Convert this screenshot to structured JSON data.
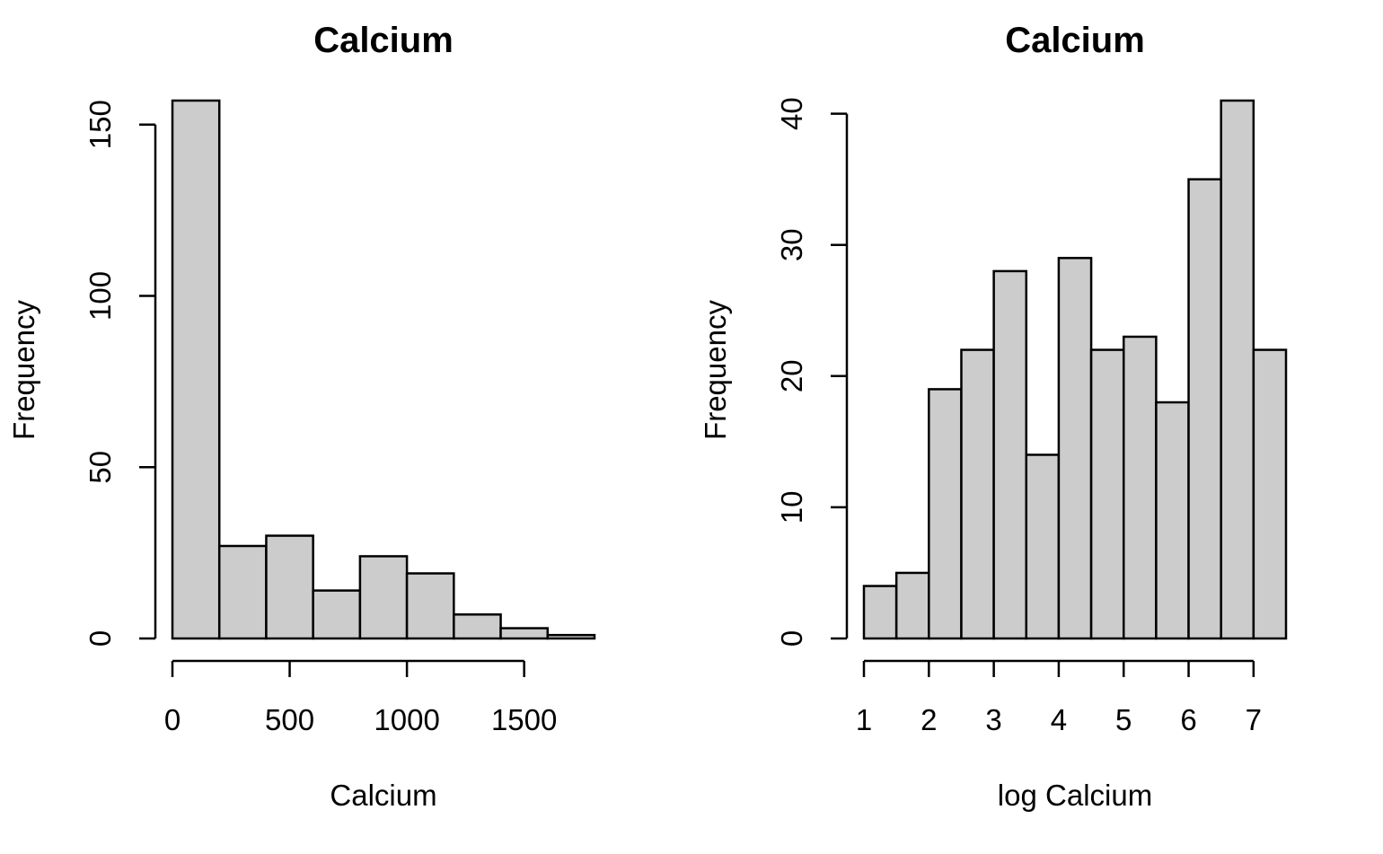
{
  "colors": {
    "bar_fill": "#cccccc",
    "bar_stroke": "#000000",
    "background": "#ffffff"
  },
  "chart_data": [
    {
      "type": "bar",
      "title": "Calcium",
      "xlabel": "Calcium",
      "ylabel": "Frequency",
      "bins": [
        {
          "start": 0,
          "end": 200,
          "count": 157
        },
        {
          "start": 200,
          "end": 400,
          "count": 27
        },
        {
          "start": 400,
          "end": 600,
          "count": 30
        },
        {
          "start": 600,
          "end": 800,
          "count": 14
        },
        {
          "start": 800,
          "end": 1000,
          "count": 24
        },
        {
          "start": 1000,
          "end": 1200,
          "count": 19
        },
        {
          "start": 1200,
          "end": 1400,
          "count": 7
        },
        {
          "start": 1400,
          "end": 1600,
          "count": 3
        },
        {
          "start": 1600,
          "end": 1800,
          "count": 1
        }
      ],
      "xlim": [
        0,
        1800
      ],
      "ylim": [
        0,
        157
      ],
      "xticks": [
        0,
        500,
        1000,
        1500
      ],
      "yticks": [
        0,
        50,
        100,
        150
      ],
      "grid": false
    },
    {
      "type": "bar",
      "title": "Calcium",
      "xlabel": "log Calcium",
      "ylabel": "Frequency",
      "bins": [
        {
          "start": 1.0,
          "end": 1.5,
          "count": 4
        },
        {
          "start": 1.5,
          "end": 2.0,
          "count": 5
        },
        {
          "start": 2.0,
          "end": 2.5,
          "count": 19
        },
        {
          "start": 2.5,
          "end": 3.0,
          "count": 22
        },
        {
          "start": 3.0,
          "end": 3.5,
          "count": 28
        },
        {
          "start": 3.5,
          "end": 4.0,
          "count": 14
        },
        {
          "start": 4.0,
          "end": 4.5,
          "count": 29
        },
        {
          "start": 4.5,
          "end": 5.0,
          "count": 22
        },
        {
          "start": 5.0,
          "end": 5.5,
          "count": 23
        },
        {
          "start": 5.5,
          "end": 6.0,
          "count": 18
        },
        {
          "start": 6.0,
          "end": 6.5,
          "count": 35
        },
        {
          "start": 6.5,
          "end": 7.0,
          "count": 41
        },
        {
          "start": 7.0,
          "end": 7.5,
          "count": 22
        }
      ],
      "xlim": [
        1,
        7.5
      ],
      "ylim": [
        0,
        41
      ],
      "xticks": [
        1,
        2,
        3,
        4,
        5,
        6,
        7
      ],
      "yticks": [
        0,
        10,
        20,
        30,
        40
      ],
      "grid": false
    }
  ]
}
